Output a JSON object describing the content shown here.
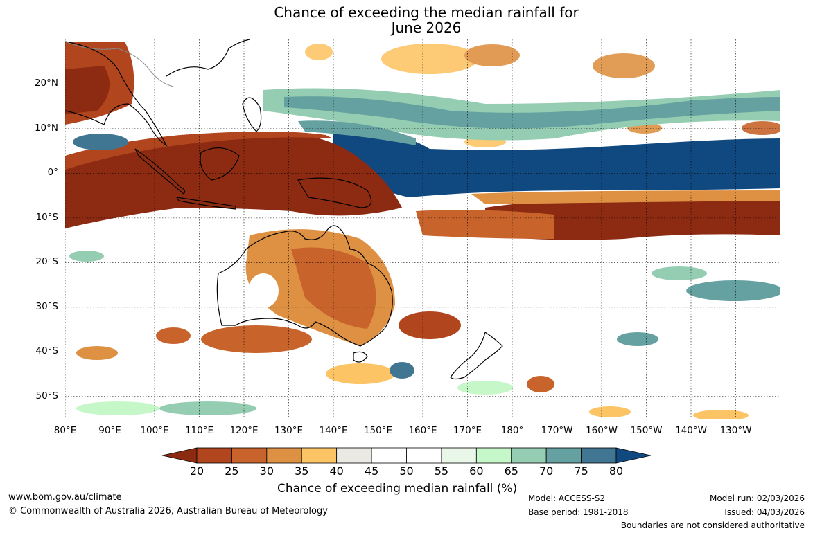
{
  "title_line1": "Chance of exceeding the median rainfall for",
  "title_line2": "June 2026",
  "map": {
    "lat_labels": [
      "20°N",
      "10°N",
      "0°",
      "10°S",
      "20°S",
      "30°S",
      "40°S",
      "50°S"
    ],
    "lat_values": [
      20,
      10,
      0,
      -10,
      -20,
      -30,
      -40,
      -50
    ],
    "lon_labels": [
      "80°E",
      "90°E",
      "100°E",
      "110°E",
      "120°E",
      "130°E",
      "140°E",
      "150°E",
      "160°E",
      "170°E",
      "180°",
      "170°W",
      "160°W",
      "150°W",
      "140°W",
      "130°W"
    ],
    "lon_values": [
      80,
      90,
      100,
      110,
      120,
      130,
      140,
      150,
      160,
      170,
      180,
      190,
      200,
      210,
      220,
      230
    ],
    "lon_range": [
      80,
      240
    ],
    "lat_range": [
      -55,
      30
    ]
  },
  "colorbar": {
    "ticks": [
      "20",
      "25",
      "30",
      "35",
      "40",
      "45",
      "50",
      "55",
      "60",
      "65",
      "70",
      "75",
      "80"
    ],
    "colors": [
      "#8c2b12",
      "#b0451e",
      "#c8642b",
      "#de9142",
      "#fdc466",
      "#ebe9e4",
      "#ffffff",
      "#ffffff",
      "#e9f7e9",
      "#c6f7c8",
      "#95cdb2",
      "#65a1a0",
      "#417693",
      "#10497f"
    ],
    "title": "Chance of exceeding median rainfall (%)"
  },
  "footer": {
    "url": "www.bom.gov.au/climate",
    "copyright": "© Commonwealth of Australia 2026, Australian Bureau of Meteorology",
    "model": "Model: ACCESS-S2",
    "base_period": "Base period: 1981-2018",
    "model_run": "Model run: 02/03/2026",
    "issued": "Issued: 04/03/2026",
    "disclaimer": "Boundaries are not considered authoritative"
  }
}
